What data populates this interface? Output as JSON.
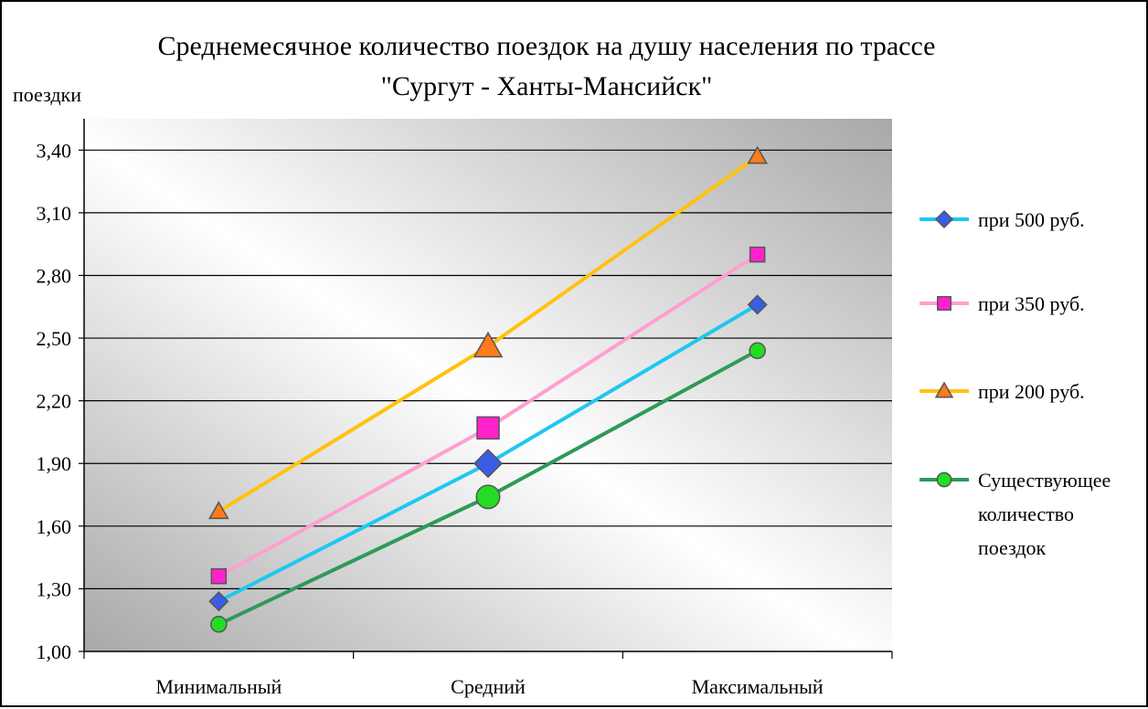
{
  "chart_data": {
    "type": "line",
    "title": "Среднемесячное количество поездок на душу населения по трассе",
    "subtitle": "\"Сургут - Ханты-Мансийск\"",
    "ylabel": "поездки",
    "xlabel": "",
    "categories": [
      "Минимальный",
      "Средний",
      "Максимальный"
    ],
    "ylim": [
      1.0,
      3.55
    ],
    "yticks": [
      "1,00",
      "1,30",
      "1,60",
      "1,90",
      "2,20",
      "2,50",
      "2,80",
      "3,10",
      "3,40"
    ],
    "grid": true,
    "legend_position": "right",
    "series": [
      {
        "name": "при 500 руб.",
        "values": [
          1.24,
          1.9,
          2.66
        ],
        "line_color": "#1ec8ef",
        "marker": "diamond",
        "marker_color": "#3b5ce4"
      },
      {
        "name": "при 350 руб.",
        "values": [
          1.36,
          2.07,
          2.9
        ],
        "line_color": "#ff9fd0",
        "marker": "square",
        "marker_color": "#ff22cc"
      },
      {
        "name": "при 200 руб.",
        "values": [
          1.67,
          2.46,
          3.37
        ],
        "line_color": "#ffc20e",
        "marker": "triangle",
        "marker_color": "#ff7a1a"
      },
      {
        "name": "Существующее количество поездок",
        "legend_lines": [
          "Существующее",
          "количество",
          "поездок"
        ],
        "values": [
          1.13,
          1.74,
          2.44
        ],
        "line_color": "#2e9a5a",
        "marker": "circle",
        "marker_color": "#22dd22"
      }
    ]
  }
}
